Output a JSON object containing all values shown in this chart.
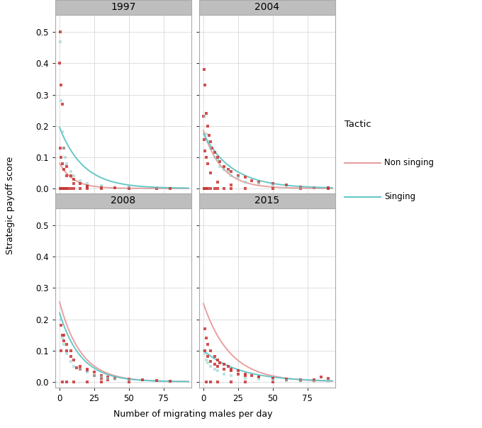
{
  "years": [
    "1997",
    "2004",
    "2008",
    "2015"
  ],
  "panel_header_color": "#bebebe",
  "panel_border_color": "#aaaaaa",
  "plot_bg": "#ffffff",
  "fig_bg": "#ffffff",
  "grid_color": "#d9d9d9",
  "title_fontsize": 10,
  "axis_fontsize": 9,
  "tick_fontsize": 8.5,
  "xlabel": "Number of migrating males per day",
  "ylabel": "Strategic payoff score",
  "xlim": [
    -3,
    95
  ],
  "ylim": [
    -0.018,
    0.555
  ],
  "yticks": [
    0.0,
    0.1,
    0.2,
    0.3,
    0.4,
    0.5
  ],
  "xticks": [
    0,
    25,
    50,
    75
  ],
  "non_singing_color": "#e8a0a0",
  "singing_color": "#66c8c8",
  "scatter_red_color": "#cc3333",
  "scatter_cyan_color": "#88cccc",
  "scatter_alpha_red": 0.85,
  "scatter_alpha_cyan": 0.55,
  "curve_non_singing": {
    "1997": {
      "a": 0.08,
      "b": 0.1
    },
    "2004": {
      "a": 0.185,
      "b": 0.075
    },
    "2008": {
      "a": 0.255,
      "b": 0.065
    },
    "2015": {
      "a": 0.25,
      "b": 0.052
    }
  },
  "curve_singing": {
    "1997": {
      "a": 0.195,
      "b": 0.058
    },
    "2004": {
      "a": 0.175,
      "b": 0.048
    },
    "2008": {
      "a": 0.22,
      "b": 0.065
    },
    "2015": {
      "a": 0.1,
      "b": 0.038
    }
  },
  "scatter_non_singing": {
    "1997": {
      "x": [
        0.5,
        1,
        2,
        3,
        5,
        8,
        10,
        15,
        20,
        30,
        50,
        70,
        80,
        0.5,
        1,
        2,
        3,
        4,
        5,
        6,
        8,
        10,
        15,
        20,
        30,
        50,
        70,
        0,
        0.5,
        1,
        2,
        3,
        5,
        10,
        20,
        40
      ],
      "y": [
        0.5,
        0.33,
        0.27,
        0.13,
        0.07,
        0.04,
        0.03,
        0.015,
        0.008,
        0.004,
        0.001,
        0.0,
        0.0,
        0.0,
        0.0,
        0.0,
        0.0,
        0.0,
        0.0,
        0.0,
        0.0,
        0.0,
        0.0,
        0.0,
        0.0,
        0.0,
        0.0,
        0.4,
        0.13,
        0.1,
        0.08,
        0.06,
        0.04,
        0.015,
        0.005,
        0.002
      ]
    },
    "2004": {
      "x": [
        0.5,
        1,
        2,
        3,
        4,
        5,
        6,
        8,
        10,
        12,
        15,
        18,
        20,
        25,
        30,
        35,
        40,
        50,
        60,
        70,
        80,
        90,
        0.5,
        1,
        2,
        3,
        5,
        8,
        10,
        15,
        20,
        30,
        50,
        70,
        90,
        0,
        0.5,
        1,
        2,
        3,
        5,
        10,
        20
      ],
      "y": [
        0.38,
        0.33,
        0.24,
        0.2,
        0.17,
        0.15,
        0.13,
        0.115,
        0.1,
        0.085,
        0.07,
        0.06,
        0.055,
        0.04,
        0.035,
        0.025,
        0.02,
        0.015,
        0.01,
        0.005,
        0.003,
        0.003,
        0.0,
        0.0,
        0.0,
        0.0,
        0.0,
        0.0,
        0.0,
        0.0,
        0.0,
        0.0,
        0.0,
        0.0,
        0.0,
        0.23,
        0.155,
        0.12,
        0.1,
        0.08,
        0.05,
        0.02,
        0.01
      ]
    },
    "2008": {
      "x": [
        1,
        2,
        3,
        5,
        8,
        10,
        15,
        20,
        25,
        30,
        35,
        40,
        50,
        60,
        70,
        80,
        2,
        5,
        10,
        20,
        30,
        50,
        1,
        3,
        5,
        8,
        12,
        15,
        20,
        25,
        30,
        35
      ],
      "y": [
        0.18,
        0.15,
        0.13,
        0.1,
        0.08,
        0.07,
        0.05,
        0.04,
        0.03,
        0.02,
        0.015,
        0.01,
        0.008,
        0.005,
        0.003,
        0.002,
        0.0,
        0.0,
        0.0,
        0.0,
        0.0,
        0.0,
        0.1,
        0.15,
        0.12,
        0.1,
        0.045,
        0.04,
        0.035,
        0.02,
        0.01,
        0.005
      ]
    },
    "2015": {
      "x": [
        1,
        2,
        3,
        5,
        8,
        10,
        12,
        15,
        18,
        20,
        25,
        30,
        35,
        40,
        50,
        60,
        70,
        80,
        85,
        90,
        2,
        5,
        10,
        20,
        30,
        50,
        1,
        3,
        5,
        8,
        10,
        15,
        20,
        25,
        30,
        40,
        50,
        60,
        70,
        80
      ],
      "y": [
        0.17,
        0.14,
        0.12,
        0.1,
        0.08,
        0.07,
        0.06,
        0.055,
        0.05,
        0.04,
        0.035,
        0.025,
        0.02,
        0.015,
        0.01,
        0.008,
        0.005,
        0.003,
        0.015,
        0.01,
        0.0,
        0.0,
        0.0,
        0.0,
        0.0,
        0.0,
        0.1,
        0.08,
        0.065,
        0.055,
        0.05,
        0.04,
        0.035,
        0.025,
        0.02,
        0.015,
        0.01,
        0.005,
        0.003,
        0.005
      ]
    }
  },
  "scatter_singing": {
    "1997": {
      "x": [
        0.5,
        1,
        2,
        3,
        4,
        5,
        8,
        10,
        15,
        20,
        30,
        50,
        70
      ],
      "y": [
        0.47,
        0.28,
        0.18,
        0.13,
        0.1,
        0.08,
        0.055,
        0.04,
        0.025,
        0.015,
        0.008,
        0.004,
        0.002
      ]
    },
    "2004": {
      "x": [
        1,
        2,
        3,
        5,
        8,
        10,
        12,
        15,
        18,
        20,
        25,
        30,
        40,
        50,
        60,
        70,
        80
      ],
      "y": [
        0.23,
        0.175,
        0.15,
        0.13,
        0.1,
        0.09,
        0.07,
        0.06,
        0.055,
        0.04,
        0.035,
        0.02,
        0.015,
        0.01,
        0.005,
        0.003,
        0.002
      ]
    },
    "2008": {
      "x": [
        1,
        2,
        3,
        5,
        8,
        10,
        15,
        20,
        25,
        30,
        35,
        40,
        50
      ],
      "y": [
        0.2,
        0.14,
        0.12,
        0.09,
        0.065,
        0.05,
        0.04,
        0.03,
        0.02,
        0.015,
        0.01,
        0.008,
        0.005
      ]
    },
    "2015": {
      "x": [
        1,
        2,
        3,
        5,
        8,
        10,
        15,
        20,
        30,
        40,
        50,
        60,
        70,
        80,
        90
      ],
      "y": [
        0.09,
        0.07,
        0.06,
        0.05,
        0.04,
        0.035,
        0.025,
        0.02,
        0.01,
        0.008,
        0.006,
        0.004,
        0.003,
        0.002,
        0.001
      ]
    }
  },
  "legend_title": "Tactic",
  "legend_non_singing": "Non singing",
  "legend_singing": "Singing"
}
